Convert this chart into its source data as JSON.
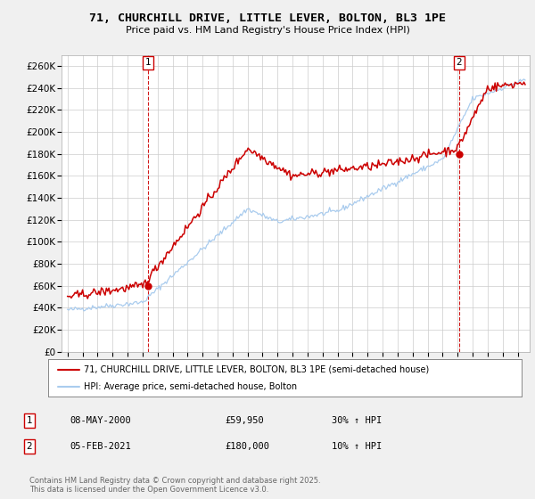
{
  "title": "71, CHURCHILL DRIVE, LITTLE LEVER, BOLTON, BL3 1PE",
  "subtitle": "Price paid vs. HM Land Registry's House Price Index (HPI)",
  "ylim": [
    0,
    270000
  ],
  "yticks": [
    0,
    20000,
    40000,
    60000,
    80000,
    100000,
    120000,
    140000,
    160000,
    180000,
    200000,
    220000,
    240000,
    260000
  ],
  "xlim_start": 1994.6,
  "xlim_end": 2025.8,
  "bg_color": "#f0f0f0",
  "plot_bg": "#ffffff",
  "grid_color": "#cccccc",
  "red_color": "#cc0000",
  "blue_color": "#aaccee",
  "marker1_x": 2000.35,
  "marker1_y": 59950,
  "marker2_x": 2021.09,
  "marker2_y": 180000,
  "legend_entries": [
    "71, CHURCHILL DRIVE, LITTLE LEVER, BOLTON, BL3 1PE (semi-detached house)",
    "HPI: Average price, semi-detached house, Bolton"
  ],
  "annotation1": [
    "1",
    "08-MAY-2000",
    "£59,950",
    "30% ↑ HPI"
  ],
  "annotation2": [
    "2",
    "05-FEB-2021",
    "£180,000",
    "10% ↑ HPI"
  ],
  "copyright": "Contains HM Land Registry data © Crown copyright and database right 2025.\nThis data is licensed under the Open Government Licence v3.0."
}
